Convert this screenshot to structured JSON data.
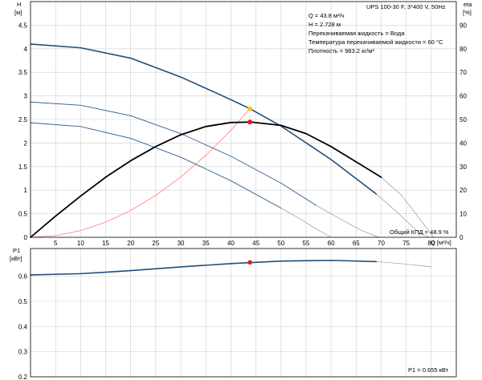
{
  "chart_data": [
    {
      "type": "line",
      "title": "UPS 100-30 F, 3*400 V, 50Hz",
      "info_lines": [
        "Q = 43.8 м³/ч",
        "H = 2.728 м",
        "Перекачиваемая жидкость = Вода",
        "Температура перекачиваемой жидкости = 60 °C",
        "Плотность = 983.2 кг/м³"
      ],
      "xlabel": "Q [м³/ч]",
      "ylabel_left": [
        "H",
        "[м]"
      ],
      "ylabel_right": [
        "eta",
        "[%]"
      ],
      "xlim": [
        0,
        85
      ],
      "ylim": [
        0,
        5
      ],
      "ylim_right": [
        0,
        100
      ],
      "x_ticks": [
        5,
        10,
        15,
        20,
        25,
        30,
        35,
        40,
        45,
        50,
        55,
        60,
        65,
        70,
        75,
        80
      ],
      "y_ticks": [
        0,
        0.5,
        1.0,
        1.5,
        2.0,
        2.5,
        3.0,
        3.5,
        4.0,
        4.5
      ],
      "y_right_ticks": [
        0,
        10,
        20,
        30,
        40,
        50,
        60,
        70,
        80,
        90
      ],
      "grid": true,
      "efficiency_label": "Общий КПД = 48.9 %",
      "series": [
        {
          "role": "pump-curve-speed-3",
          "axis": "left",
          "color": "#1f4e79",
          "width": 1.6,
          "x": [
            0,
            10,
            20,
            30,
            40,
            43.8,
            50,
            60,
            69
          ],
          "y": [
            4.1,
            4.02,
            3.8,
            3.4,
            2.92,
            2.728,
            2.36,
            1.65,
            0.92
          ]
        },
        {
          "role": "pump-curve-speed-3-extension",
          "axis": "left",
          "color": "#7e9cbc",
          "width": 0.7,
          "x": [
            69,
            73,
            77,
            79.5
          ],
          "y": [
            0.92,
            0.55,
            0.15,
            0
          ]
        },
        {
          "role": "pump-curve-speed-2",
          "axis": "left",
          "color": "#2e5e8e",
          "width": 0.9,
          "x": [
            0,
            10,
            20,
            30,
            40,
            50,
            57
          ],
          "y": [
            2.87,
            2.8,
            2.58,
            2.2,
            1.72,
            1.15,
            0.68
          ]
        },
        {
          "role": "pump-curve-speed-2-extension",
          "axis": "left",
          "color": "#7e9cbc",
          "width": 0.7,
          "x": [
            57,
            62,
            66,
            69.5
          ],
          "y": [
            0.68,
            0.38,
            0.15,
            0
          ]
        },
        {
          "role": "pump-curve-speed-1",
          "axis": "left",
          "color": "#2e5e8e",
          "width": 0.9,
          "x": [
            0,
            10,
            20,
            30,
            40,
            50
          ],
          "y": [
            2.43,
            2.35,
            2.1,
            1.7,
            1.2,
            0.62
          ]
        },
        {
          "role": "pump-curve-speed-1-extension",
          "axis": "left",
          "color": "#7e9cbc",
          "width": 0.7,
          "x": [
            50,
            54,
            57,
            60
          ],
          "y": [
            0.62,
            0.38,
            0.18,
            0
          ]
        },
        {
          "role": "efficiency",
          "axis": "right",
          "color": "#000000",
          "width": 1.8,
          "x": [
            0,
            5,
            10,
            15,
            20,
            25,
            30,
            35,
            40,
            44,
            50,
            55,
            60,
            65,
            70
          ],
          "y": [
            0,
            9,
            17.5,
            25.5,
            32.5,
            38.5,
            43.5,
            47,
            48.7,
            48.9,
            47.5,
            44,
            38.5,
            32,
            25.5
          ]
        },
        {
          "role": "efficiency-extension",
          "axis": "right",
          "color": "#7e9cbc",
          "width": 0.7,
          "x": [
            70,
            74,
            78,
            80.5
          ],
          "y": [
            25.5,
            18,
            7,
            0
          ]
        },
        {
          "role": "system-curve",
          "axis": "left",
          "color": "#ff6b6b",
          "width": 0.7,
          "x": [
            0,
            5,
            10,
            15,
            20,
            25,
            30,
            35,
            40,
            43.8
          ],
          "y": [
            0,
            0.035,
            0.142,
            0.32,
            0.57,
            0.89,
            1.28,
            1.74,
            2.27,
            2.728
          ]
        }
      ],
      "points": [
        {
          "role": "operating-point",
          "axis": "left",
          "x": 43.8,
          "y": 2.728,
          "color": "#f5c518"
        },
        {
          "role": "efficiency-point",
          "axis": "right",
          "x": 43.8,
          "y": 48.9,
          "color": "#e41a1c"
        }
      ]
    },
    {
      "type": "line",
      "ylabel": [
        "P1",
        "[кВт]"
      ],
      "xlim": [
        0,
        85
      ],
      "ylim": [
        0.2,
        0.71
      ],
      "y_ticks": [
        0.2,
        0.3,
        0.4,
        0.5,
        0.6
      ],
      "grid": true,
      "power_label": "P1 = 0.655 кВт",
      "series": [
        {
          "role": "power",
          "color": "#1f4e79",
          "width": 1.6,
          "x": [
            0,
            10,
            20,
            30,
            40,
            50,
            60,
            69
          ],
          "y": [
            0.605,
            0.61,
            0.622,
            0.637,
            0.65,
            0.66,
            0.663,
            0.658
          ]
        },
        {
          "role": "power-extension",
          "color": "#7e9cbc",
          "width": 0.7,
          "x": [
            69,
            75,
            80
          ],
          "y": [
            0.658,
            0.648,
            0.637
          ]
        }
      ],
      "points": [
        {
          "role": "power-point",
          "x": 43.8,
          "y": 0.655,
          "color": "#e41a1c"
        }
      ]
    }
  ]
}
